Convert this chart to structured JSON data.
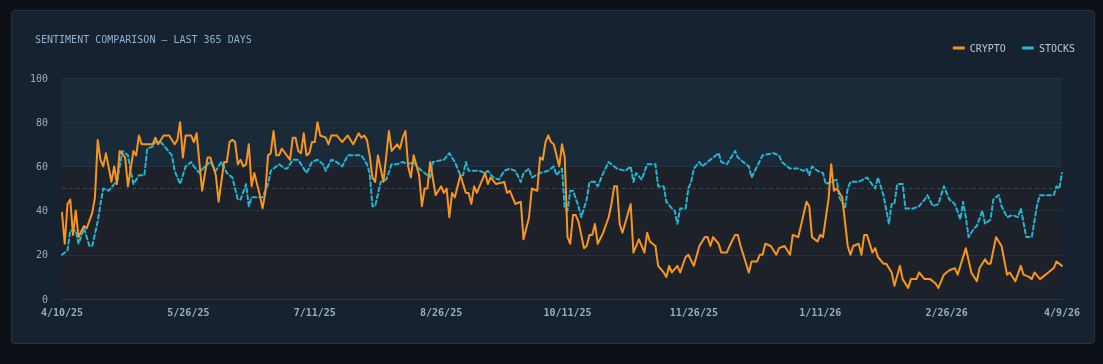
{
  "chart_data": {
    "type": "line",
    "title": "SENTIMENT COMPARISON — LAST 365 DAYS",
    "xlim": [
      "2025-04-10",
      "2026-04-09"
    ],
    "xticks": [
      {
        "value": "2025-04-10",
        "label": "4/10/25"
      },
      {
        "value": "2025-05-26",
        "label": "5/26/25"
      },
      {
        "value": "2025-07-11",
        "label": "7/11/25"
      },
      {
        "value": "2025-08-26",
        "label": "8/26/25"
      },
      {
        "value": "2025-10-11",
        "label": "10/11/25"
      },
      {
        "value": "2025-11-26",
        "label": "11/26/25"
      },
      {
        "value": "2026-01-11",
        "label": "1/11/26"
      },
      {
        "value": "2026-02-26",
        "label": "2/26/26"
      },
      {
        "value": "2026-04-09",
        "label": "4/9/26"
      }
    ],
    "ylim": [
      0,
      100
    ],
    "yticks": [
      0,
      20,
      40,
      60,
      80,
      100
    ],
    "grid": "y",
    "legend": "top right",
    "marker": "none",
    "ref_lines": [
      {
        "axis": "y",
        "value": 50,
        "color": "#3a4250",
        "line_style": "dashed"
      }
    ],
    "bands": [
      {
        "axis": "y",
        "from": 0,
        "to": 60,
        "color": "#1d212a"
      },
      {
        "axis": "y",
        "from": 60,
        "to": 100,
        "color": "#1a2a38"
      }
    ],
    "series": [
      {
        "name": "CRYPTO",
        "color": "#f7961e",
        "line_style": "solid",
        "x": [
          "2025-04-10",
          "2025-04-11",
          "2025-04-12",
          "2025-04-13",
          "2025-04-14",
          "2025-04-15",
          "2025-04-16",
          "2025-04-18",
          "2025-04-19",
          "2025-04-21",
          "2025-04-22",
          "2025-04-23",
          "2025-04-24",
          "2025-04-25",
          "2025-04-26",
          "2025-04-28",
          "2025-04-29",
          "2025-04-30",
          "2025-05-01",
          "2025-05-03",
          "2025-05-04",
          "2025-05-06",
          "2025-05-07",
          "2025-05-08",
          "2025-05-09",
          "2025-05-13",
          "2025-05-14",
          "2025-05-15",
          "2025-05-17",
          "2025-05-19",
          "2025-05-21",
          "2025-05-22",
          "2025-05-23",
          "2025-05-24",
          "2025-05-25",
          "2025-05-27",
          "2025-05-28",
          "2025-05-29",
          "2025-05-31",
          "2025-06-02",
          "2025-06-03",
          "2025-06-05",
          "2025-06-06",
          "2025-06-08",
          "2025-06-09",
          "2025-06-10",
          "2025-06-11",
          "2025-06-12",
          "2025-06-13",
          "2025-06-14",
          "2025-06-15",
          "2025-06-16",
          "2025-06-17",
          "2025-06-18",
          "2025-06-19",
          "2025-06-21",
          "2025-06-22",
          "2025-06-23",
          "2025-06-24",
          "2025-06-25",
          "2025-06-26",
          "2025-06-27",
          "2025-06-28",
          "2025-06-29",
          "2025-07-02",
          "2025-07-03",
          "2025-07-04",
          "2025-07-05",
          "2025-07-06",
          "2025-07-07",
          "2025-07-08",
          "2025-07-09",
          "2025-07-10",
          "2025-07-11",
          "2025-07-12",
          "2025-07-13",
          "2025-07-15",
          "2025-07-16",
          "2025-07-17",
          "2025-07-19",
          "2025-07-21",
          "2025-07-23",
          "2025-07-25",
          "2025-07-27",
          "2025-07-28",
          "2025-07-29",
          "2025-07-30",
          "2025-07-31",
          "2025-08-01",
          "2025-08-02",
          "2025-08-03",
          "2025-08-05",
          "2025-08-07",
          "2025-08-08",
          "2025-08-10",
          "2025-08-11",
          "2025-08-12",
          "2025-08-13",
          "2025-08-14",
          "2025-08-15",
          "2025-08-16",
          "2025-08-18",
          "2025-08-19",
          "2025-08-20",
          "2025-08-21",
          "2025-08-22",
          "2025-08-24",
          "2025-08-26",
          "2025-08-27",
          "2025-08-28",
          "2025-08-29",
          "2025-08-30",
          "2025-08-31",
          "2025-09-02",
          "2025-09-04",
          "2025-09-05",
          "2025-09-06",
          "2025-09-07",
          "2025-09-08",
          "2025-09-11",
          "2025-09-12",
          "2025-09-13",
          "2025-09-15",
          "2025-09-18",
          "2025-09-19",
          "2025-09-20",
          "2025-09-22",
          "2025-09-24",
          "2025-09-25",
          "2025-09-27",
          "2025-09-28",
          "2025-09-30",
          "2025-10-01",
          "2025-10-02",
          "2025-10-03",
          "2025-10-04",
          "2025-10-05",
          "2025-10-06",
          "2025-10-08",
          "2025-10-09",
          "2025-10-10",
          "2025-10-11",
          "2025-10-12",
          "2025-10-13",
          "2025-10-14",
          "2025-10-15",
          "2025-10-17",
          "2025-10-18",
          "2025-10-19",
          "2025-10-20",
          "2025-10-21",
          "2025-10-22",
          "2025-10-24",
          "2025-10-26",
          "2025-10-27",
          "2025-10-28",
          "2025-10-29",
          "2025-10-30",
          "2025-10-31",
          "2025-11-03",
          "2025-11-04",
          "2025-11-06",
          "2025-11-08",
          "2025-11-09",
          "2025-11-10",
          "2025-11-12",
          "2025-11-13",
          "2025-11-15",
          "2025-11-16",
          "2025-11-17",
          "2025-11-18",
          "2025-11-20",
          "2025-11-21",
          "2025-11-23",
          "2025-11-24",
          "2025-11-26",
          "2025-11-28",
          "2025-11-30",
          "2025-12-01",
          "2025-12-02",
          "2025-12-03",
          "2025-12-05",
          "2025-12-06",
          "2025-12-08",
          "2025-12-09",
          "2025-12-11",
          "2025-12-12",
          "2025-12-13",
          "2025-12-14",
          "2025-12-16",
          "2025-12-17",
          "2025-12-19",
          "2025-12-20",
          "2025-12-21",
          "2025-12-22",
          "2025-12-24",
          "2025-12-26",
          "2025-12-27",
          "2025-12-29",
          "2025-12-31",
          "2026-01-01",
          "2026-01-03",
          "2026-01-06",
          "2026-01-07",
          "2026-01-08",
          "2026-01-10",
          "2026-01-11",
          "2026-01-12",
          "2026-01-14",
          "2026-01-15",
          "2026-01-16",
          "2026-01-17",
          "2026-01-19",
          "2026-01-21",
          "2026-01-22",
          "2026-01-23",
          "2026-01-25",
          "2026-01-26",
          "2026-01-27",
          "2026-01-28",
          "2026-01-30",
          "2026-01-31",
          "2026-02-01",
          "2026-02-03",
          "2026-02-04",
          "2026-02-06",
          "2026-02-07",
          "2026-02-09",
          "2026-02-10",
          "2026-02-12",
          "2026-02-13",
          "2026-02-15",
          "2026-02-16",
          "2026-02-18",
          "2026-02-20",
          "2026-02-22",
          "2026-02-23",
          "2026-02-25",
          "2026-02-27",
          "2026-03-01",
          "2026-03-02",
          "2026-03-03",
          "2026-03-05",
          "2026-03-07",
          "2026-03-09",
          "2026-03-10",
          "2026-03-12",
          "2026-03-13",
          "2026-03-14",
          "2026-03-16",
          "2026-03-18",
          "2026-03-20",
          "2026-03-21",
          "2026-03-23",
          "2026-03-25",
          "2026-03-26",
          "2026-03-28",
          "2026-03-29",
          "2026-03-30",
          "2026-04-01",
          "2026-04-04",
          "2026-04-06",
          "2026-04-07",
          "2026-04-09"
        ],
        "values": [
          39,
          25,
          43,
          45,
          29,
          40,
          28,
          33,
          32,
          39,
          46,
          72,
          63,
          60,
          66,
          53,
          60,
          52,
          67,
          64,
          51,
          67,
          65,
          74,
          70,
          70,
          73,
          70,
          74,
          74,
          70,
          72,
          80,
          64,
          74,
          74,
          71,
          75,
          49,
          64,
          64,
          56,
          44,
          62,
          62,
          71,
          72,
          71,
          61,
          63,
          60,
          61,
          70,
          51,
          57,
          47,
          41,
          48,
          65,
          66,
          76,
          65,
          65,
          68,
          63,
          73,
          73,
          67,
          66,
          75,
          65,
          66,
          71,
          71,
          80,
          74,
          73,
          70,
          74,
          74,
          71,
          74,
          70,
          75,
          73,
          74,
          72,
          65,
          55,
          53,
          65,
          53,
          76,
          67,
          70,
          68,
          73,
          76,
          60,
          55,
          65,
          56,
          42,
          50,
          50,
          62,
          47,
          51,
          48,
          50,
          37,
          48,
          46,
          56,
          48,
          48,
          43,
          51,
          48,
          57,
          52,
          55,
          52,
          53,
          48,
          49,
          43,
          44,
          27,
          37,
          50,
          49,
          64,
          63,
          71,
          74,
          71,
          70,
          60,
          70,
          64,
          28,
          25,
          38,
          38,
          35,
          23,
          24,
          29,
          29,
          34,
          25,
          30,
          37,
          43,
          51,
          51,
          34,
          30,
          43,
          21,
          27,
          21,
          30,
          26,
          24,
          15,
          12,
          10,
          15,
          12,
          15,
          12,
          19,
          20,
          15,
          24,
          28,
          28,
          24,
          28,
          25,
          21,
          21,
          24,
          29,
          29,
          24,
          20,
          12,
          17,
          17,
          20,
          20,
          25,
          24,
          20,
          23,
          24,
          20,
          29,
          28,
          44,
          42,
          28,
          26,
          29,
          28,
          45,
          61,
          49,
          50,
          46,
          24,
          20,
          24,
          25,
          20,
          29,
          29,
          21,
          23,
          19,
          16,
          16,
          12,
          6,
          15,
          9,
          5,
          9,
          9,
          12,
          9,
          9,
          7,
          5,
          11,
          13,
          14,
          11,
          15,
          23,
          12,
          8,
          14,
          18,
          16,
          16,
          28,
          24,
          11,
          12,
          8,
          15,
          11,
          10,
          9,
          12,
          9,
          12,
          14,
          17,
          15
        ]
      },
      {
        "name": "STOCKS",
        "color": "#22b6d4",
        "line_style": "dashed",
        "x": [
          "2025-04-10",
          "2025-04-12",
          "2025-04-13",
          "2025-04-15",
          "2025-04-16",
          "2025-04-18",
          "2025-04-19",
          "2025-04-20",
          "2025-04-21",
          "2025-04-23",
          "2025-04-24",
          "2025-04-25",
          "2025-04-27",
          "2025-04-29",
          "2025-04-30",
          "2025-05-02",
          "2025-05-04",
          "2025-05-05",
          "2025-05-06",
          "2025-05-08",
          "2025-05-10",
          "2025-05-11",
          "2025-05-13",
          "2025-05-14",
          "2025-05-16",
          "2025-05-18",
          "2025-05-20",
          "2025-05-21",
          "2025-05-23",
          "2025-05-25",
          "2025-05-27",
          "2025-05-28",
          "2025-05-30",
          "2025-06-01",
          "2025-06-03",
          "2025-06-05",
          "2025-06-07",
          "2025-06-09",
          "2025-06-11",
          "2025-06-13",
          "2025-06-14",
          "2025-06-16",
          "2025-06-17",
          "2025-06-18",
          "2025-06-22",
          "2025-06-24",
          "2025-06-25",
          "2025-06-28",
          "2025-06-30",
          "2025-07-01",
          "2025-07-03",
          "2025-07-05",
          "2025-07-07",
          "2025-07-08",
          "2025-07-10",
          "2025-07-12",
          "2025-07-14",
          "2025-07-15",
          "2025-07-17",
          "2025-07-19",
          "2025-07-21",
          "2025-07-23",
          "2025-07-26",
          "2025-07-28",
          "2025-07-30",
          "2025-07-31",
          "2025-08-01",
          "2025-08-02",
          "2025-08-04",
          "2025-08-06",
          "2025-08-08",
          "2025-08-10",
          "2025-08-12",
          "2025-08-14",
          "2025-08-16",
          "2025-08-18",
          "2025-08-20",
          "2025-08-22",
          "2025-08-23",
          "2025-08-27",
          "2025-08-29",
          "2025-08-31",
          "2025-09-02",
          "2025-09-03",
          "2025-09-04",
          "2025-09-05",
          "2025-09-09",
          "2025-09-11",
          "2025-09-12",
          "2025-09-14",
          "2025-09-16",
          "2025-09-18",
          "2025-09-20",
          "2025-09-22",
          "2025-09-24",
          "2025-09-25",
          "2025-09-27",
          "2025-09-28",
          "2025-10-01",
          "2025-10-04",
          "2025-10-06",
          "2025-10-07",
          "2025-10-09",
          "2025-10-10",
          "2025-10-11",
          "2025-10-12",
          "2025-10-13",
          "2025-10-15",
          "2025-10-16",
          "2025-10-18",
          "2025-10-19",
          "2025-10-21",
          "2025-10-22",
          "2025-10-24",
          "2025-10-26",
          "2025-10-27",
          "2025-10-29",
          "2025-11-01",
          "2025-11-03",
          "2025-11-04",
          "2025-11-05",
          "2025-11-07",
          "2025-11-09",
          "2025-11-12",
          "2025-11-13",
          "2025-11-15",
          "2025-11-16",
          "2025-11-18",
          "2025-11-19",
          "2025-11-20",
          "2025-11-21",
          "2025-11-23",
          "2025-11-24",
          "2025-11-25",
          "2025-11-26",
          "2025-11-28",
          "2025-11-29",
          "2025-12-01",
          "2025-12-03",
          "2025-12-05",
          "2025-12-06",
          "2025-12-08",
          "2025-12-11",
          "2025-12-12",
          "2025-12-15",
          "2025-12-16",
          "2025-12-17",
          "2025-12-19",
          "2025-12-21",
          "2025-12-25",
          "2025-12-27",
          "2025-12-28",
          "2025-12-31",
          "2026-01-03",
          "2026-01-05",
          "2026-01-06",
          "2026-01-07",
          "2026-01-08",
          "2026-01-10",
          "2026-01-12",
          "2026-01-13",
          "2026-01-15",
          "2026-01-17",
          "2026-01-18",
          "2026-01-20",
          "2026-01-21",
          "2026-01-22",
          "2026-01-25",
          "2026-01-28",
          "2026-01-31",
          "2026-02-01",
          "2026-02-03",
          "2026-02-05",
          "2026-02-06",
          "2026-02-07",
          "2026-02-08",
          "2026-02-10",
          "2026-02-11",
          "2026-02-14",
          "2026-02-16",
          "2026-02-18",
          "2026-02-19",
          "2026-02-21",
          "2026-02-23",
          "2026-02-25",
          "2026-02-27",
          "2026-03-01",
          "2026-03-03",
          "2026-03-04",
          "2026-03-05",
          "2026-03-06",
          "2026-03-08",
          "2026-03-09",
          "2026-03-11",
          "2026-03-12",
          "2026-03-14",
          "2026-03-15",
          "2026-03-17",
          "2026-03-18",
          "2026-03-20",
          "2026-03-22",
          "2026-03-24",
          "2026-03-25",
          "2026-03-27",
          "2026-03-29",
          "2026-03-31",
          "2026-04-01",
          "2026-04-03",
          "2026-04-06",
          "2026-04-07",
          "2026-04-08",
          "2026-04-09"
        ],
        "values": [
          20,
          22,
          31,
          31,
          25,
          32,
          28,
          24,
          24,
          35,
          43,
          50,
          49,
          52,
          53,
          67,
          65,
          58,
          52,
          56,
          56,
          68,
          69,
          71,
          71,
          68,
          65,
          58,
          52,
          60,
          62,
          60,
          57,
          60,
          62,
          58,
          62,
          57,
          55,
          45,
          45,
          52,
          42,
          46,
          46,
          52,
          58,
          61,
          59,
          59,
          63,
          63,
          59,
          57,
          62,
          63,
          61,
          58,
          63,
          62,
          60,
          65,
          65,
          65,
          61,
          57,
          42,
          42,
          53,
          54,
          61,
          61,
          62,
          61,
          62,
          59,
          57,
          55,
          62,
          63,
          66,
          62,
          56,
          56,
          62,
          58,
          58,
          57,
          58,
          55,
          54,
          58,
          59,
          58,
          53,
          57,
          59,
          55,
          57,
          58,
          60,
          56,
          59,
          41,
          40,
          49,
          49,
          42,
          37,
          45,
          53,
          53,
          51,
          57,
          62,
          61,
          59,
          58,
          60,
          53,
          57,
          54,
          61,
          61,
          51,
          51,
          44,
          41,
          40,
          34,
          41,
          41,
          50,
          53,
          59,
          62,
          60,
          62,
          64,
          66,
          62,
          61,
          67,
          64,
          61,
          60,
          55,
          60,
          65,
          66,
          65,
          62,
          59,
          59,
          58,
          59,
          56,
          60,
          58,
          57,
          52,
          53,
          54,
          46,
          41,
          50,
          53,
          53,
          55,
          50,
          55,
          47,
          34,
          43,
          43,
          52,
          52,
          41,
          41,
          42,
          45,
          47,
          42,
          43,
          51,
          45,
          43,
          36,
          44,
          37,
          28,
          32,
          33,
          40,
          34,
          36,
          45,
          47,
          42,
          37,
          38,
          37,
          41,
          28,
          28,
          43,
          47,
          47,
          47,
          51,
          50,
          57
        ]
      }
    ]
  }
}
